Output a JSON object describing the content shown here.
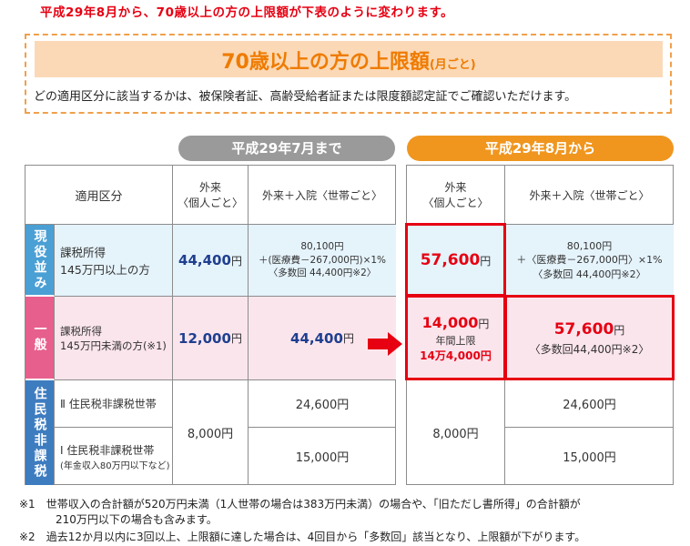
{
  "headline": "平成29年8月から、70歳以上の方の上限額が下表のように変わります。",
  "title": {
    "main": "70歳以上の方の上限額",
    "sub": "(月ごと)"
  },
  "note": "どの適用区分に該当するかは、被保険者証、高齢受給者証または限度額認定証でご確認いただけます。",
  "periods": {
    "old": "平成29年7月まで",
    "new": "平成29年8月から"
  },
  "headers": {
    "category": "適用区分",
    "outpatient": "外来\n〈個人ごと〉",
    "combined": "外来＋入院〈世帯ごと〉"
  },
  "groups": {
    "genyaku": "現役並み",
    "ippan": "一般",
    "juminzei": "住民税非課税"
  },
  "rows": {
    "genyaku": {
      "label": "課税所得\n145万円以上の方",
      "old_outpatient": "44,400",
      "old_combined": "80,100円\n＋(医療費－267,000円)×1%\n〈多数回 44,400円※2〉",
      "new_outpatient": "57,600",
      "new_combined": "80,100円\n＋〈医療費－267,000円〉×1%\n〈多数回 44,400円※2〉"
    },
    "ippan": {
      "label": "課税所得\n145万円未満の方(※1)",
      "old_outpatient": "12,000",
      "old_combined": "44,400",
      "new_outpatient": "14,000",
      "new_outpatient_note": "年間上限",
      "new_outpatient_annual": "14万4,000円",
      "new_combined": "57,600",
      "new_combined_note": "〈多数回44,400円※2〉"
    },
    "juminzei2": {
      "label": "Ⅱ 住民税非課税世帯",
      "combined": "24,600円"
    },
    "juminzei1": {
      "label": "Ⅰ 住民税非課税世帯",
      "sublabel": "(年金収入80万円以下など)",
      "combined": "15,000円"
    },
    "juminzei_outpatient": "8,000円"
  },
  "unit": "円",
  "footnotes": [
    "※1　世帯収入の合計額が520万円未満（1人世帯の場合は383万円未満）の場合や、「旧ただし書所得」の合計額が",
    "210万円以下の場合も含みます。",
    "※2　過去12か月以内に3回以上、上限額に達した場合は、4回目から「多数回」該当となり、上限額が下がります。"
  ],
  "colors": {
    "red": "#e60012",
    "orange": "#f0961e",
    "gray": "#9a9a9a",
    "navy": "#1f3f8f",
    "genyaku_label": "#4a9fd4",
    "ippan_label": "#e75f8c",
    "juminzei_label": "#3e7cc0"
  }
}
